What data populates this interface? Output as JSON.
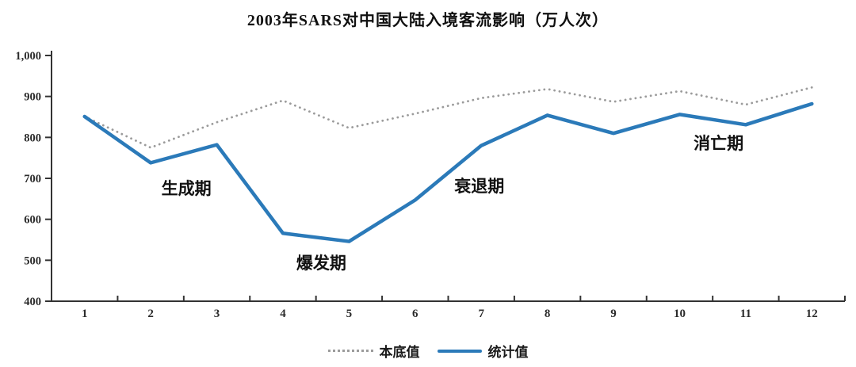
{
  "chart_data": {
    "type": "line",
    "title": "2003年SARS对中国大陆入境客流影响（万人次）",
    "xlabel": "",
    "ylabel": "",
    "categories": [
      "1",
      "2",
      "3",
      "4",
      "5",
      "6",
      "7",
      "8",
      "9",
      "10",
      "11",
      "12"
    ],
    "y_axis": {
      "min": 400,
      "max": 1000,
      "tick_step": 100,
      "tick_labels": [
        "1,000",
        "900",
        "800",
        "700",
        "600",
        "500",
        "400"
      ]
    },
    "grid": false,
    "legend_position": "bottom",
    "series": [
      {
        "name": "本底值",
        "style": "dotted",
        "color": "#9b9b9b",
        "values": [
          851,
          775,
          837,
          890,
          823,
          858,
          896,
          918,
          887,
          913,
          880,
          922
        ]
      },
      {
        "name": "统计值",
        "style": "solid",
        "color": "#2b7ab9",
        "values": [
          851,
          738,
          782,
          566,
          546,
          647,
          780,
          854,
          810,
          856,
          831,
          882
        ]
      }
    ],
    "annotations": [
      {
        "text": "生成期",
        "month": 2.54,
        "value": 675
      },
      {
        "text": "爆发期",
        "month": 4.58,
        "value": 493
      },
      {
        "text": "衰退期",
        "month": 6.97,
        "value": 681
      },
      {
        "text": "消亡期",
        "month": 10.59,
        "value": 785
      }
    ]
  },
  "colors": {
    "axis": "#333333",
    "tick_text": "#2b2b2b",
    "annotation_text": "#111111"
  }
}
